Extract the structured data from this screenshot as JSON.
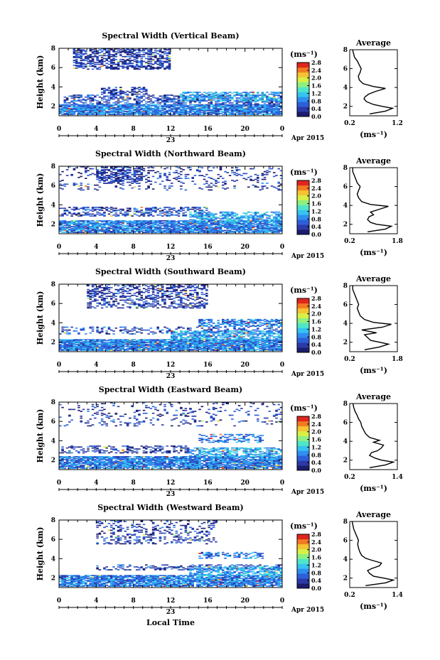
{
  "figure": {
    "xlabel": "Local Time",
    "day_label": "23",
    "month_label": "Apr 2015",
    "ylabel": "Height (km)",
    "x_ticks": [
      "0",
      "4",
      "8",
      "12",
      "16",
      "20",
      "0"
    ],
    "y_ticks": [
      "2",
      "4",
      "6",
      "8"
    ],
    "colorbar_unit": "(ms⁻¹)",
    "colorbar_ticks": [
      "0.0",
      "0.4",
      "0.8",
      "1.2",
      "1.6",
      "2.0",
      "2.4",
      "2.8"
    ],
    "avg_title": "Average",
    "avg_ylabel_ticks": [
      "2",
      "4",
      "6",
      "8"
    ],
    "avg_unit": "(ms⁻¹)"
  },
  "colors": {
    "colormap": [
      "#1c1c6e",
      "#2b3aa8",
      "#2d5fd8",
      "#2f8ff0",
      "#35c3f0",
      "#4fe6c8",
      "#8ef080",
      "#d8f046",
      "#f6c432",
      "#f47a22",
      "#e0261c"
    ]
  },
  "chart_data": [
    {
      "type": "heatmap",
      "title": "Spectral Width (Vertical Beam)",
      "xlabel": "Local Time",
      "ylabel": "Height (km)",
      "xlim": [
        0,
        24
      ],
      "ylim": [
        1,
        8
      ],
      "clim": [
        0,
        2.8
      ],
      "layers": [
        {
          "t0": 1.5,
          "t1": 12,
          "h0": 5.8,
          "h1": 7.9,
          "value": 0.4,
          "density": 0.55
        },
        {
          "t0": 4.5,
          "t1": 9.5,
          "h0": 3.2,
          "h1": 4.0,
          "value": 0.4,
          "density": 0.5
        },
        {
          "t0": 0.5,
          "t1": 24,
          "h0": 2.2,
          "h1": 3.2,
          "value": 0.5,
          "density": 0.45
        },
        {
          "t0": 0,
          "t1": 24,
          "h0": 1.1,
          "h1": 2.2,
          "value": 0.8,
          "density": 0.9
        },
        {
          "t0": 13,
          "t1": 24,
          "h0": 2.5,
          "h1": 3.5,
          "value": 1.0,
          "density": 0.6
        }
      ],
      "avg": {
        "xlim": [
          0.2,
          1.2
        ],
        "x_ticks": [
          "0.2",
          "1.2"
        ],
        "height": [
          1.2,
          1.5,
          1.8,
          2.0,
          2.2,
          2.5,
          2.8,
          3.0,
          3.3,
          3.6,
          3.9,
          4.1,
          4.4,
          4.8,
          5.2,
          5.6,
          6.0,
          6.4,
          6.8,
          7.2,
          7.6,
          8.0
        ],
        "width": [
          0.62,
          0.95,
          1.1,
          0.88,
          0.7,
          0.55,
          0.5,
          0.52,
          0.6,
          0.75,
          0.95,
          0.7,
          0.48,
          0.4,
          0.38,
          0.42,
          0.44,
          0.4,
          0.36,
          0.3,
          0.28,
          0.26
        ]
      }
    },
    {
      "type": "heatmap",
      "title": "Spectral Width (Northward Beam)",
      "xlabel": "Local Time",
      "ylabel": "Height (km)",
      "xlim": [
        0,
        24
      ],
      "ylim": [
        1,
        8
      ],
      "clim": [
        0,
        2.8
      ],
      "layers": [
        {
          "t0": 0,
          "t1": 24,
          "h0": 5.5,
          "h1": 7.9,
          "value": 0.4,
          "density": 0.15
        },
        {
          "t0": 4,
          "t1": 9,
          "h0": 6.2,
          "h1": 7.9,
          "value": 0.4,
          "density": 0.45
        },
        {
          "t0": 0,
          "t1": 16,
          "h0": 2.8,
          "h1": 3.8,
          "value": 0.5,
          "density": 0.45
        },
        {
          "t0": 0,
          "t1": 24,
          "h0": 1.1,
          "h1": 2.4,
          "value": 0.8,
          "density": 0.85
        },
        {
          "t0": 14,
          "t1": 24,
          "h0": 2.2,
          "h1": 3.3,
          "value": 1.0,
          "density": 0.6
        }
      ],
      "avg": {
        "xlim": [
          0.2,
          1.8
        ],
        "x_ticks": [
          "0.2",
          "1.8"
        ],
        "height": [
          1.2,
          1.5,
          1.8,
          2.0,
          2.2,
          2.5,
          2.8,
          3.0,
          3.3,
          3.6,
          3.9,
          4.1,
          4.4,
          4.8,
          5.2,
          5.6,
          6.0,
          6.4,
          6.8,
          7.2,
          7.6,
          8.0
        ],
        "width": [
          0.8,
          1.4,
          1.6,
          1.1,
          0.9,
          0.8,
          0.85,
          1.0,
          0.9,
          1.2,
          1.5,
          0.9,
          0.6,
          0.5,
          0.45,
          0.5,
          0.55,
          0.45,
          0.4,
          0.35,
          0.3,
          0.3
        ]
      }
    },
    {
      "type": "heatmap",
      "title": "Spectral Width (Southward Beam)",
      "xlabel": "Local Time",
      "ylabel": "Height (km)",
      "xlim": [
        0,
        24
      ],
      "ylim": [
        1,
        8
      ],
      "clim": [
        0,
        2.8
      ],
      "layers": [
        {
          "t0": 3,
          "t1": 16,
          "h0": 5.5,
          "h1": 7.9,
          "value": 0.4,
          "density": 0.4
        },
        {
          "t0": 0,
          "t1": 24,
          "h0": 2.8,
          "h1": 3.6,
          "value": 0.5,
          "density": 0.3
        },
        {
          "t0": 15,
          "t1": 24,
          "h0": 3.6,
          "h1": 4.3,
          "value": 0.8,
          "density": 0.55
        },
        {
          "t0": 0,
          "t1": 24,
          "h0": 1.1,
          "h1": 2.3,
          "value": 0.8,
          "density": 0.9
        },
        {
          "t0": 12,
          "t1": 24,
          "h0": 2.2,
          "h1": 3.2,
          "value": 1.0,
          "density": 0.6
        }
      ],
      "avg": {
        "xlim": [
          0.2,
          1.8
        ],
        "x_ticks": [
          "0.2",
          "1.8"
        ],
        "height": [
          1.2,
          1.5,
          1.8,
          2.0,
          2.2,
          2.5,
          2.8,
          3.0,
          3.3,
          3.6,
          3.9,
          4.1,
          4.4,
          4.8,
          5.2,
          5.6,
          6.0,
          6.4,
          6.8,
          7.2,
          7.6,
          8.0
        ],
        "width": [
          0.7,
          1.2,
          1.5,
          1.2,
          0.9,
          0.8,
          0.7,
          1.1,
          0.6,
          1.3,
          1.6,
          1.0,
          0.7,
          0.55,
          0.5,
          0.45,
          0.5,
          0.45,
          0.4,
          0.35,
          0.3,
          0.3
        ]
      }
    },
    {
      "type": "heatmap",
      "title": "Spectral Width (Eastward Beam)",
      "xlabel": "Local Time",
      "ylabel": "Height (km)",
      "xlim": [
        0,
        24
      ],
      "ylim": [
        1,
        8
      ],
      "clim": [
        0,
        2.8
      ],
      "layers": [
        {
          "t0": 0,
          "t1": 24,
          "h0": 5.5,
          "h1": 7.9,
          "value": 0.4,
          "density": 0.12
        },
        {
          "t0": 0,
          "t1": 14,
          "h0": 2.7,
          "h1": 3.5,
          "value": 0.4,
          "density": 0.35
        },
        {
          "t0": 15,
          "t1": 22,
          "h0": 3.8,
          "h1": 4.6,
          "value": 0.8,
          "density": 0.4
        },
        {
          "t0": 0,
          "t1": 24,
          "h0": 1.1,
          "h1": 2.4,
          "value": 0.8,
          "density": 0.85
        },
        {
          "t0": 14,
          "t1": 24,
          "h0": 2.3,
          "h1": 3.3,
          "value": 1.0,
          "density": 0.6
        }
      ],
      "avg": {
        "xlim": [
          0.2,
          1.4
        ],
        "x_ticks": [
          "0.2",
          "1.4"
        ],
        "height": [
          1.2,
          1.5,
          1.8,
          2.0,
          2.2,
          2.5,
          2.8,
          3.0,
          3.3,
          3.6,
          3.9,
          4.1,
          4.4,
          4.8,
          5.2,
          5.6,
          6.0,
          6.4,
          6.8,
          7.2,
          7.6,
          8.0
        ],
        "width": [
          0.7,
          1.1,
          1.3,
          1.0,
          0.85,
          0.7,
          0.75,
          0.9,
          1.0,
          1.05,
          0.8,
          0.95,
          0.7,
          0.6,
          0.55,
          0.5,
          0.48,
          0.42,
          0.38,
          0.33,
          0.3,
          0.28
        ]
      }
    },
    {
      "type": "heatmap",
      "title": "Spectral Width (Westward Beam)",
      "xlabel": "Local Time",
      "ylabel": "Height (km)",
      "xlim": [
        0,
        24
      ],
      "ylim": [
        1,
        8
      ],
      "clim": [
        0,
        2.8
      ],
      "layers": [
        {
          "t0": 4,
          "t1": 17,
          "h0": 5.5,
          "h1": 7.9,
          "value": 0.4,
          "density": 0.22
        },
        {
          "t0": 15,
          "t1": 22,
          "h0": 4.0,
          "h1": 4.6,
          "value": 0.8,
          "density": 0.4
        },
        {
          "t0": 4,
          "t1": 24,
          "h0": 2.8,
          "h1": 3.4,
          "value": 0.5,
          "density": 0.3
        },
        {
          "t0": 0,
          "t1": 24,
          "h0": 1.1,
          "h1": 2.3,
          "value": 0.8,
          "density": 0.85
        },
        {
          "t0": 14,
          "t1": 24,
          "h0": 2.2,
          "h1": 3.2,
          "value": 1.0,
          "density": 0.6
        }
      ],
      "avg": {
        "xlim": [
          0.2,
          1.4
        ],
        "x_ticks": [
          "0.2",
          "1.4"
        ],
        "height": [
          1.2,
          1.5,
          1.8,
          2.0,
          2.2,
          2.5,
          2.8,
          3.0,
          3.3,
          3.6,
          3.9,
          4.1,
          4.4,
          4.8,
          5.2,
          5.6,
          6.0,
          6.4,
          6.8,
          7.2,
          7.6,
          8.0
        ],
        "width": [
          0.6,
          1.1,
          1.3,
          1.05,
          0.8,
          0.7,
          0.65,
          0.75,
          0.95,
          1.0,
          0.75,
          0.6,
          0.5,
          0.45,
          0.42,
          0.4,
          0.42,
          0.38,
          0.34,
          0.3,
          0.28,
          0.26
        ]
      }
    }
  ]
}
